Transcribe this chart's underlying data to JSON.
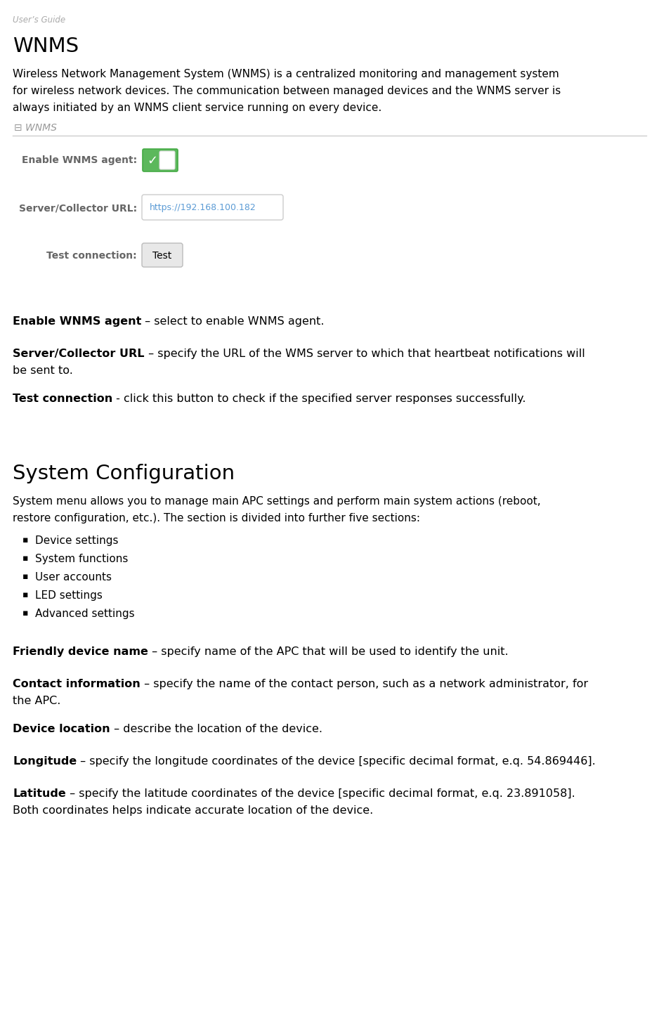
{
  "page_label": "User’s Guide",
  "section1_title": "WNMS",
  "body1_line1": "Wireless Network Management System (WNMS) is a centralized monitoring and management system",
  "body1_line2": "for wireless network devices. The communication between managed devices and the WNMS server is",
  "body1_line3": "always initiated by an WNMS client service running on every device.",
  "panel_label": "⊟ WNMS",
  "field1_label": "Enable WNMS agent:",
  "field2_label": "Server/Collector URL:",
  "field2_value": "https://192.168.100.182",
  "field3_label": "Test connection:",
  "field3_button": "Test",
  "desc1_bold": "Enable WNMS agent",
  "desc1_rest": " – select to enable WNMS agent.",
  "desc2_bold": "Server/Collector URL",
  "desc2_rest_line1": " – specify the URL of the WMS server to which that heartbeat notifications will",
  "desc2_rest_line2": "be sent to.",
  "desc3_bold": "Test connection",
  "desc3_rest": " - click this button to check if the specified server responses successfully.",
  "section2_title": "System Configuration",
  "body2_line1": "System menu allows you to manage main APC settings and perform main system actions (reboot,",
  "body2_line2": "restore configuration, etc.). The section is divided into further five sections:",
  "bullets": [
    "Device settings",
    "System functions",
    "User accounts",
    "LED settings",
    "Advanced settings"
  ],
  "param1_bold": "Friendly device name",
  "param1_rest": " – specify name of the APC that will be used to identify the unit.",
  "param2_bold": "Contact information",
  "param2_rest_line1": " – specify the name of the contact person, such as a network administrator, for",
  "param2_rest_line2": "the APC.",
  "param3_bold": "Device location",
  "param3_rest": " – describe the location of the device.",
  "param4_bold": "Longitude",
  "param4_rest": " – specify the longitude coordinates of the device [specific decimal format, e.q. 54.869446].",
  "param5_bold": "Latitude",
  "param5_rest_line1": " – specify the latitude coordinates of the device [specific decimal format, e.q. 23.891058].",
  "param5_rest_line2": "Both coordinates helps indicate accurate location of the device.",
  "bg_color": "#ffffff",
  "text_color": "#000000",
  "label_color": "#999999",
  "line_color": "#cccccc",
  "toggle_green": "#5cb85c",
  "input_border": "#cccccc",
  "button_bg": "#e8e8e8",
  "button_border": "#bbbbbb",
  "page_label_color": "#aaaaaa",
  "field_label_color": "#666666",
  "url_color": "#5b9bd5"
}
